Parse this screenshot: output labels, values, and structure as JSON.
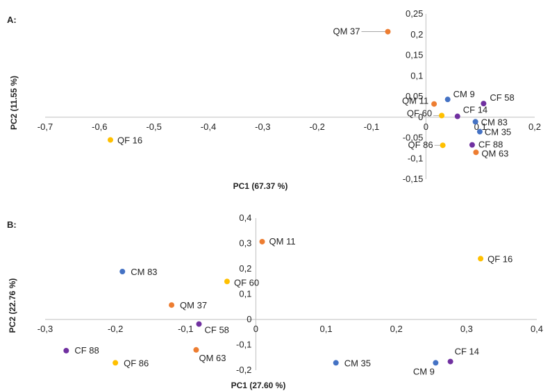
{
  "colors": {
    "CM": "#4472C4",
    "QM": "#ED7D31",
    "CF": "#7030A0",
    "QF": "#FFC000"
  },
  "chart_data": [
    {
      "type": "scatter",
      "panel_label": "A:",
      "xlabel": "PC1 (67.37 %)",
      "ylabel": "PC2 (11.55 %)",
      "xlim": [
        -0.7,
        0.2
      ],
      "ylim": [
        -0.15,
        0.25
      ],
      "x_ticks": [
        "-0,7",
        "-0,6",
        "-0,5",
        "-0,4",
        "-0,3",
        "-0,2",
        "-0,1",
        "0",
        "0,1",
        "0,2"
      ],
      "y_ticks": [
        "-0,15",
        "-0,1",
        "-0,05",
        "0",
        "0,05",
        "0,1",
        "0,15",
        "0,2",
        "0,25"
      ],
      "grid": false,
      "points": [
        {
          "label": "QM 37",
          "group": "QM",
          "x": -0.07,
          "y": 0.207
        },
        {
          "label": "CM 9",
          "group": "CM",
          "x": 0.04,
          "y": 0.043
        },
        {
          "label": "CF 58",
          "group": "CF",
          "x": 0.106,
          "y": 0.033
        },
        {
          "label": "QM 11",
          "group": "QM",
          "x": 0.015,
          "y": 0.032
        },
        {
          "label": "CF 14",
          "group": "CF",
          "x": 0.058,
          "y": 0.002
        },
        {
          "label": "QF 60",
          "group": "QF",
          "x": 0.029,
          "y": 0.004
        },
        {
          "label": "CM 83",
          "group": "CM",
          "x": 0.091,
          "y": -0.011
        },
        {
          "label": "CM 35",
          "group": "CM",
          "x": 0.099,
          "y": -0.035
        },
        {
          "label": "QF 16",
          "group": "QF",
          "x": -0.58,
          "y": -0.055
        },
        {
          "label": "CF 88",
          "group": "CF",
          "x": 0.085,
          "y": -0.067
        },
        {
          "label": "QF 86",
          "group": "QF",
          "x": 0.031,
          "y": -0.068
        },
        {
          "label": "QM 63",
          "group": "QM",
          "x": 0.092,
          "y": -0.085
        }
      ]
    },
    {
      "type": "scatter",
      "panel_label": "B:",
      "xlabel": "PC1 (27.60 %)",
      "ylabel": "PC2 (22.76 %)",
      "xlim": [
        -0.3,
        0.4
      ],
      "ylim": [
        -0.2,
        0.4
      ],
      "x_ticks": [
        "-0,3",
        "-0,2",
        "-0,1",
        "0",
        "0,1",
        "0,2",
        "0,3",
        "0,4"
      ],
      "y_ticks": [
        "-0,2",
        "-0,1",
        "0",
        "0,1",
        "0,2",
        "0,3",
        "0,4"
      ],
      "grid": false,
      "points": [
        {
          "label": "QM 11",
          "group": "QM",
          "x": 0.009,
          "y": 0.307
        },
        {
          "label": "QF 16",
          "group": "QF",
          "x": 0.32,
          "y": 0.24
        },
        {
          "label": "CM 83",
          "group": "CM",
          "x": -0.19,
          "y": 0.189
        },
        {
          "label": "QF 60",
          "group": "QF",
          "x": -0.041,
          "y": 0.15
        },
        {
          "label": "QM 37",
          "group": "QM",
          "x": -0.12,
          "y": 0.057
        },
        {
          "label": "CF 58",
          "group": "CF",
          "x": -0.081,
          "y": -0.018
        },
        {
          "label": "CF 88",
          "group": "CF",
          "x": -0.27,
          "y": -0.123
        },
        {
          "label": "QM 63",
          "group": "QM",
          "x": -0.085,
          "y": -0.12
        },
        {
          "label": "QF 86",
          "group": "QF",
          "x": -0.2,
          "y": -0.171
        },
        {
          "label": "CM 35",
          "group": "CM",
          "x": 0.114,
          "y": -0.171
        },
        {
          "label": "CF 14",
          "group": "CF",
          "x": 0.277,
          "y": -0.166
        },
        {
          "label": "CM 9",
          "group": "CM",
          "x": 0.256,
          "y": -0.171
        }
      ]
    }
  ]
}
